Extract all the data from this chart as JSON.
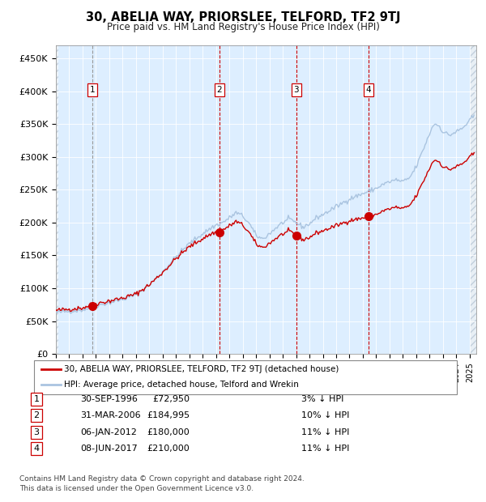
{
  "title": "30, ABELIA WAY, PRIORSLEE, TELFORD, TF2 9TJ",
  "subtitle": "Price paid vs. HM Land Registry's House Price Index (HPI)",
  "legend_property": "30, ABELIA WAY, PRIORSLEE, TELFORD, TF2 9TJ (detached house)",
  "legend_hpi": "HPI: Average price, detached house, Telford and Wrekin",
  "footer1": "Contains HM Land Registry data © Crown copyright and database right 2024.",
  "footer2": "This data is licensed under the Open Government Licence v3.0.",
  "sales": [
    {
      "label": "1",
      "date": "30-SEP-1996",
      "price": 72950,
      "pct": "3% ↓ HPI",
      "x_year": 1996.75
    },
    {
      "label": "2",
      "date": "31-MAR-2006",
      "price": 184995,
      "pct": "10% ↓ HPI",
      "x_year": 2006.25
    },
    {
      "label": "3",
      "date": "06-JAN-2012",
      "price": 180000,
      "pct": "11% ↓ HPI",
      "x_year": 2012.02
    },
    {
      "label": "4",
      "date": "08-JUN-2017",
      "price": 210000,
      "pct": "11% ↓ HPI",
      "x_year": 2017.44
    }
  ],
  "hpi_color": "#aac4e0",
  "price_color": "#cc0000",
  "dot_color": "#cc0000",
  "vline_color_sale": "#cc0000",
  "vline_color_1": "#999999",
  "background_plot": "#ddeeff",
  "background_fig": "#ffffff",
  "ylim": [
    0,
    470000
  ],
  "xlim_start": 1994.0,
  "xlim_end": 2025.5,
  "yticks": [
    0,
    50000,
    100000,
    150000,
    200000,
    250000,
    300000,
    350000,
    400000,
    450000
  ],
  "ytick_labels": [
    "£0",
    "£50K",
    "£100K",
    "£150K",
    "£200K",
    "£250K",
    "£300K",
    "£350K",
    "£400K",
    "£450K"
  ]
}
